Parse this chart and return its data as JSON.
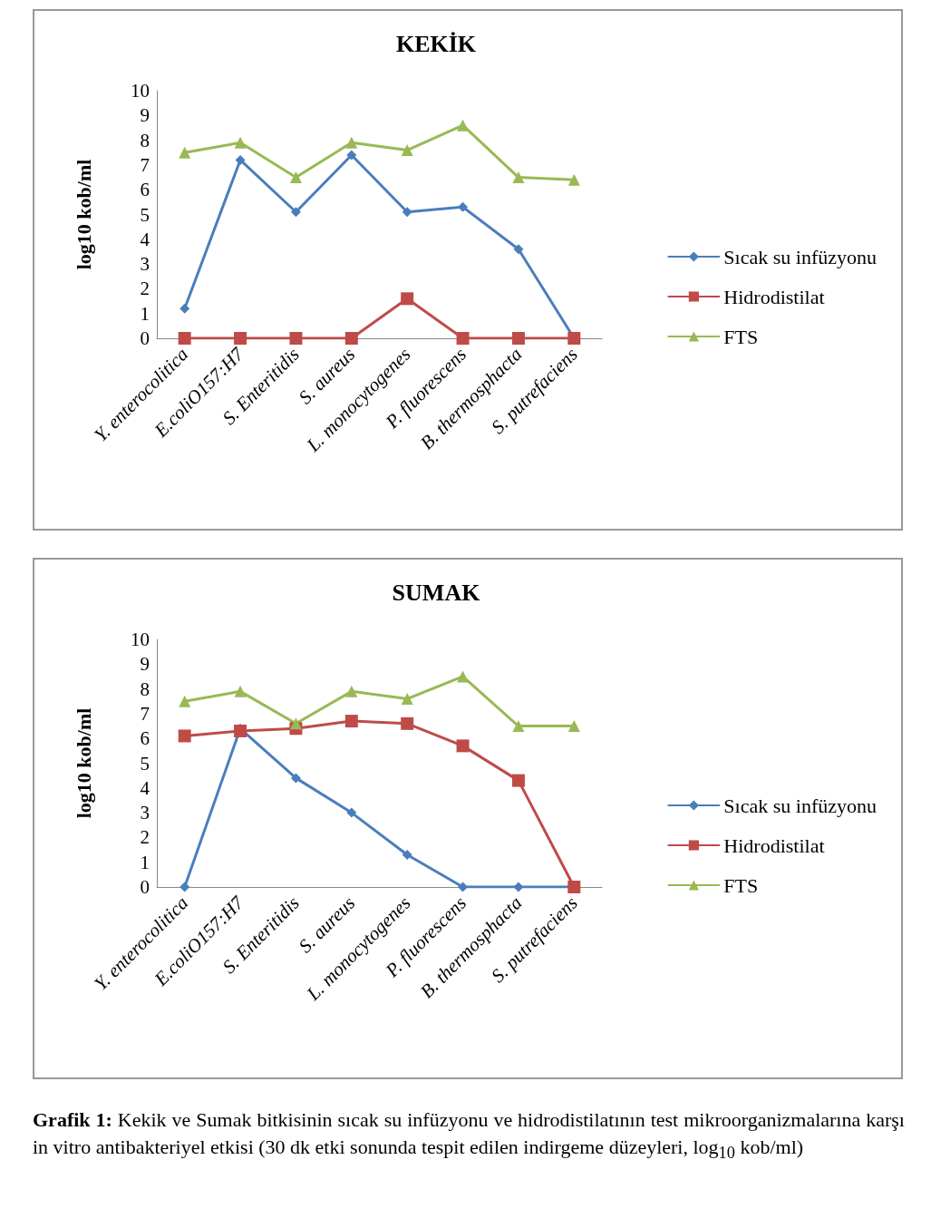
{
  "chart_data": [
    {
      "type": "line",
      "title": "KEKİK",
      "ylabel": "log10 kob/ml",
      "categories": [
        "Y. enterocolitica",
        "E.coliO157:H7",
        "S. Enteritidis",
        "S. aureus",
        "L. monocytogenes",
        "P. fluorescens",
        "B. thermosphacta",
        "S. putrefaciens"
      ],
      "ylim": [
        0,
        10
      ],
      "yticks": [
        0,
        1,
        2,
        3,
        4,
        5,
        6,
        7,
        8,
        9,
        10
      ],
      "grid": false,
      "legend": "right",
      "series": [
        {
          "name": "Sıcak su infüzyonu",
          "color": "#4a7ebb",
          "marker": "diamond",
          "values": [
            1.2,
            7.2,
            5.1,
            7.4,
            5.1,
            5.3,
            3.6,
            0
          ]
        },
        {
          "name": "Hidrodistilat",
          "color": "#be4b48",
          "marker": "square",
          "values": [
            0,
            0,
            0,
            0,
            1.6,
            0,
            0,
            0
          ]
        },
        {
          "name": "FTS",
          "color": "#98b954",
          "marker": "triangle",
          "values": [
            7.5,
            7.9,
            6.5,
            7.9,
            7.6,
            8.6,
            6.5,
            6.4
          ]
        }
      ]
    },
    {
      "type": "line",
      "title": "SUMAK",
      "ylabel": "log10 kob/ml",
      "categories": [
        "Y. enterocolitica",
        "E.coliO157:H7",
        "S. Enteritidis",
        "S. aureus",
        "L. monocytogenes",
        "P. fluorescens",
        "B. thermosphacta",
        "S. putrefaciens"
      ],
      "ylim": [
        0,
        10
      ],
      "yticks": [
        0,
        1,
        2,
        3,
        4,
        5,
        6,
        7,
        8,
        9,
        10
      ],
      "grid": false,
      "legend": "right",
      "annotations": [
        "Grafik 1:",
        "Kekik ve Sumak bitkisinin sıcak su infüzyonu ve hidrodistilatının test mikroorganizmalarına karşı in vitro antibakteriyel etkisi (30 dk etki sonunda tespit edilen indirgeme düzeyleri, log$_{10}$ kob/ml)"
      ],
      "series": [
        {
          "name": "Sıcak su infüzyonu",
          "color": "#4a7ebb",
          "marker": "diamond",
          "values": [
            0,
            6.4,
            4.4,
            3.0,
            1.3,
            0,
            0,
            0
          ]
        },
        {
          "name": "Hidrodistilat",
          "color": "#be4b48",
          "marker": "square",
          "values": [
            6.1,
            6.3,
            6.4,
            6.7,
            6.6,
            5.7,
            4.3,
            0
          ]
        },
        {
          "name": "FTS",
          "color": "#98b954",
          "marker": "triangle",
          "values": [
            7.5,
            7.9,
            6.6,
            7.9,
            7.6,
            8.5,
            6.5,
            6.5
          ]
        }
      ]
    }
  ]
}
